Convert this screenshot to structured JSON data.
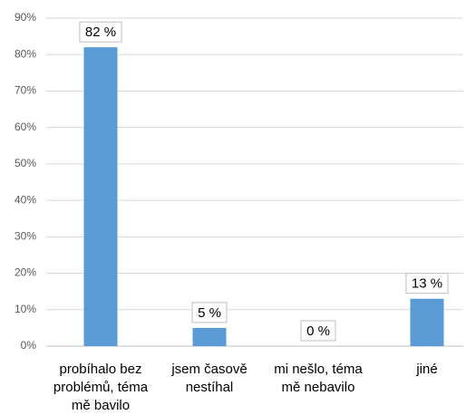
{
  "chart_data": {
    "type": "bar",
    "categories": [
      "probíhalo bez problémů, téma mě bavilo",
      "jsem časově nestíhal",
      "mi nešlo, téma mě nebavilo",
      "jiné"
    ],
    "values": [
      82,
      5,
      0,
      13
    ],
    "value_labels": [
      "82 %",
      "5 %",
      "0 %",
      "13 %"
    ],
    "color": "#5b9bd5",
    "ylim": [
      0,
      90
    ],
    "yticks": [
      {
        "value": 0,
        "label": "0%"
      },
      {
        "value": 10,
        "label": "10%"
      },
      {
        "value": 20,
        "label": "20%"
      },
      {
        "value": 30,
        "label": "30%"
      },
      {
        "value": 40,
        "label": "40%"
      },
      {
        "value": 50,
        "label": "50%"
      },
      {
        "value": 60,
        "label": "60%"
      },
      {
        "value": 70,
        "label": "70%"
      },
      {
        "value": 80,
        "label": "80%"
      },
      {
        "value": 90,
        "label": "90%"
      }
    ],
    "grid": true
  }
}
